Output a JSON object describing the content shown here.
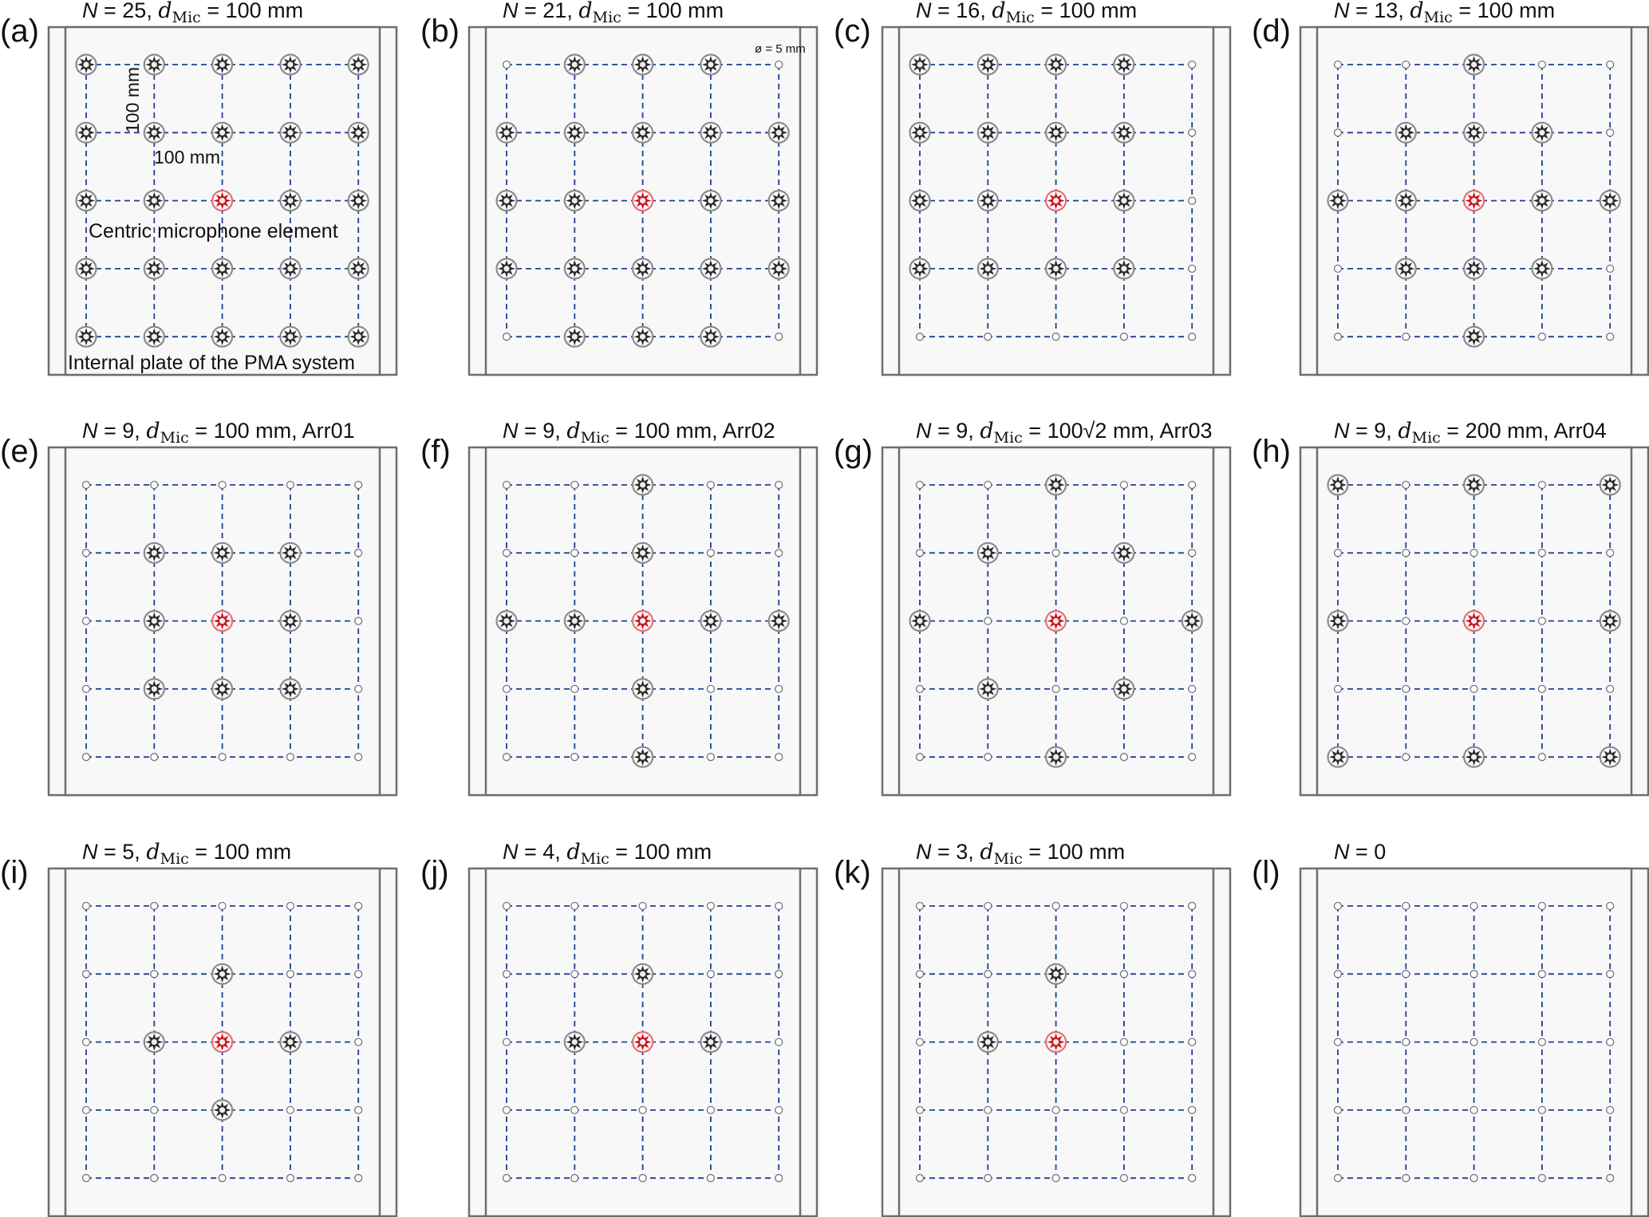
{
  "symbols": {
    "N": "N",
    "d": "d",
    "sub": "Mic",
    "eq": " = "
  },
  "colors": {
    "grid": "#1e3f94",
    "mic": "#2b2b2b",
    "ring": "#8a8a8a",
    "center": "#d0121b",
    "plate": "#f8f8f8",
    "frame": "#6e6e6e"
  },
  "panels": [
    {
      "label": "(a)",
      "n": "25",
      "d_value": "100 mm",
      "suffix": "",
      "mics": [
        "11111",
        "11111",
        "11211",
        "11111",
        "11111"
      ],
      "annotations": {
        "vertical_spacing": "100 mm",
        "horizontal_spacing": "100 mm",
        "center_label": "Centric microphone element",
        "plate_label": "Internal plate of the PMA system"
      }
    },
    {
      "label": "(b)",
      "n": "21",
      "d_value": "100 mm",
      "suffix": "",
      "mics": [
        "01110",
        "11111",
        "11211",
        "11111",
        "01110"
      ],
      "annotations": {
        "hole_diameter": "ø = 5 mm"
      }
    },
    {
      "label": "(c)",
      "n": "16",
      "d_value": "100 mm",
      "suffix": "",
      "mics": [
        "11110",
        "11110",
        "11210",
        "11110",
        "00000"
      ]
    },
    {
      "label": "(d)",
      "n": "13",
      "d_value": "100 mm",
      "suffix": "",
      "mics": [
        "00100",
        "01110",
        "11211",
        "01110",
        "00100"
      ]
    },
    {
      "label": "(e)",
      "n": "9",
      "d_value": "100 mm",
      "suffix": ", Arr01",
      "mics": [
        "00000",
        "01110",
        "01210",
        "01110",
        "00000"
      ]
    },
    {
      "label": "(f)",
      "n": "9",
      "d_value": "100 mm",
      "suffix": ", Arr02",
      "mics": [
        "00100",
        "00100",
        "11211",
        "00100",
        "00100"
      ]
    },
    {
      "label": "(g)",
      "n": "9",
      "d_value": "100√2 mm",
      "suffix": ", Arr03",
      "mics": [
        "00100",
        "01010",
        "10201",
        "01010",
        "00100"
      ]
    },
    {
      "label": "(h)",
      "n": "9",
      "d_value": "200 mm",
      "suffix": ", Arr04",
      "mics": [
        "10101",
        "00000",
        "10201",
        "00000",
        "10101"
      ]
    },
    {
      "label": "(i)",
      "n": "5",
      "d_value": "100 mm",
      "suffix": "",
      "mics": [
        "00000",
        "00100",
        "01210",
        "00100",
        "00000"
      ]
    },
    {
      "label": "(j)",
      "n": "4",
      "d_value": "100 mm",
      "suffix": "",
      "mics": [
        "00000",
        "00100",
        "01210",
        "00000",
        "00000"
      ]
    },
    {
      "label": "(k)",
      "n": "3",
      "d_value": "100 mm",
      "suffix": "",
      "mics": [
        "00000",
        "00100",
        "01200",
        "00000",
        "00000"
      ]
    },
    {
      "label": "(l)",
      "n": "0",
      "d_value": "",
      "suffix": "",
      "mics": [
        "00000",
        "00000",
        "00000",
        "00000",
        "00000"
      ]
    }
  ]
}
